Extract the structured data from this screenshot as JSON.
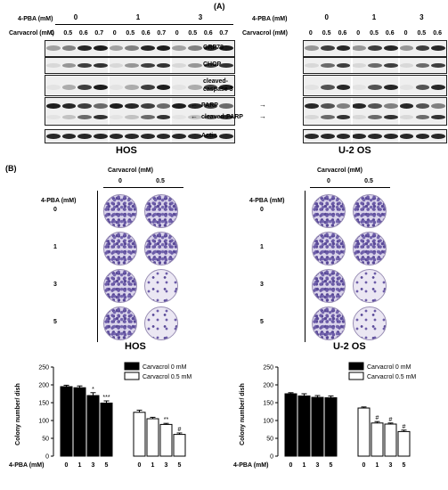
{
  "panel_a": {
    "label": "(A)",
    "left": {
      "pba_label": "4-PBA (mM)",
      "carv_label": "Carvacrol (mM)",
      "pba_groups": [
        "0",
        "1",
        "3"
      ],
      "carv_doses": [
        "0",
        "0.5",
        "0.6",
        "0.7",
        "0",
        "0.5",
        "0.6",
        "0.7",
        "0",
        "0.5",
        "0.6",
        "0.7"
      ],
      "cell_line": "HOS"
    },
    "right": {
      "pba_label": "4-PBA (mM)",
      "carv_label": "Carvacrol (mM)",
      "pba_groups": [
        "0",
        "1",
        "3"
      ],
      "carv_doses": [
        "0",
        "0.5",
        "0.6",
        "0",
        "0.5",
        "0.6",
        "0",
        "0.5",
        "0.6"
      ],
      "cell_line": "U-2 OS"
    },
    "proteins": {
      "grp78": "GRP78",
      "chop": "CHOP",
      "cleaved_caspase3_l1": "cleaved-",
      "cleaved_caspase3_l2": "caspase 3",
      "parp": "PARP",
      "cleaved_parp": "cleaved-PARP",
      "actin": "Actin"
    }
  },
  "panel_b": {
    "label": "(B)",
    "carv_label": "Carvacrol (mM)",
    "carv_cols": [
      "0",
      "0.5"
    ],
    "pba_label": "4-PBA (mM)",
    "pba_rows": [
      "0",
      "1",
      "3",
      "5"
    ],
    "cell_lines": [
      "HOS",
      "U-2 OS"
    ]
  },
  "chart_data": [
    {
      "type": "bar",
      "title": "HOS",
      "ylabel": "Colony number/ dish",
      "xlabel": "4-PBA (mM)",
      "ylim": [
        0,
        250
      ],
      "yticks": [
        "0",
        "50",
        "100",
        "150",
        "200",
        "250"
      ],
      "categories": [
        "0",
        "1",
        "3",
        "5"
      ],
      "series": [
        {
          "name": "Carvacrol 0 mM",
          "fill": "#000000",
          "values": [
            195,
            192,
            170,
            149
          ],
          "errors": [
            4,
            5,
            8,
            6
          ],
          "annotations": [
            "",
            "",
            "*",
            "***"
          ]
        },
        {
          "name": "Carvacrol 0.5 mM",
          "fill": "#ffffff",
          "values": [
            123,
            105,
            89,
            61
          ],
          "errors": [
            6,
            4,
            3,
            4
          ],
          "annotations": [
            "",
            "",
            "**",
            "#"
          ]
        }
      ]
    },
    {
      "type": "bar",
      "title": "U-2 OS",
      "ylabel": "Colony number/ dish",
      "xlabel": "4-PBA (mM)",
      "ylim": [
        0,
        250
      ],
      "yticks": [
        "0",
        "50",
        "100",
        "150",
        "200",
        "250"
      ],
      "categories": [
        "0",
        "1",
        "3",
        "5"
      ],
      "series": [
        {
          "name": "Carvacrol 0 mM",
          "fill": "#000000",
          "values": [
            175,
            169,
            165,
            164
          ],
          "errors": [
            3,
            6,
            5,
            5
          ],
          "annotations": [
            "",
            "",
            "",
            ""
          ]
        },
        {
          "name": "Carvacrol 0.5 mM",
          "fill": "#ffffff",
          "values": [
            135,
            93,
            90,
            69
          ],
          "errors": [
            3,
            4,
            3,
            4
          ],
          "annotations": [
            "",
            "#",
            "#",
            "#"
          ]
        }
      ]
    }
  ]
}
